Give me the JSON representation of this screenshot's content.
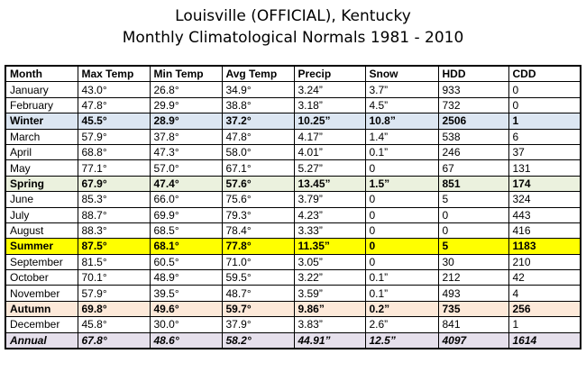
{
  "title": {
    "line1": "Louisville (OFFICIAL),  Kentucky",
    "line2": "Monthly Climatological Normals 1981 - 2010"
  },
  "table": {
    "headers": [
      "Month",
      "Max Temp",
      "Min Temp",
      "Avg Temp",
      "Precip",
      "Snow",
      "HDD",
      "CDD"
    ],
    "rows": [
      {
        "type": "month",
        "cells": [
          "January",
          "43.0°",
          "26.8°",
          "34.9°",
          "3.24”",
          "3.7”",
          "933",
          "0"
        ]
      },
      {
        "type": "month",
        "cells": [
          "February",
          "47.8°",
          "29.9°",
          "38.8°",
          "3.18”",
          "4.5”",
          "732",
          "0"
        ]
      },
      {
        "type": "winter",
        "cells": [
          "Winter",
          "45.5°",
          "28.9°",
          "37.2°",
          "10.25”",
          "10.8”",
          "2506",
          "1"
        ]
      },
      {
        "type": "month",
        "cells": [
          "March",
          "57.9°",
          "37.8°",
          "47.8°",
          "4.17”",
          "1.4”",
          "538",
          "6"
        ]
      },
      {
        "type": "month",
        "cells": [
          "April",
          "68.8°",
          "47.3°",
          "58.0°",
          "4.01”",
          "0.1”",
          "246",
          "37"
        ]
      },
      {
        "type": "month",
        "cells": [
          "May",
          "77.1°",
          "57.0°",
          "67.1°",
          "5.27”",
          "0",
          "67",
          "131"
        ]
      },
      {
        "type": "spring",
        "cells": [
          "Spring",
          "67.9°",
          "47.4°",
          "57.6°",
          "13.45”",
          "1.5”",
          "851",
          "174"
        ]
      },
      {
        "type": "month",
        "cells": [
          "June",
          "85.3°",
          "66.0°",
          "75.6°",
          "3.79”",
          "0",
          "5",
          "324"
        ]
      },
      {
        "type": "month",
        "cells": [
          "July",
          "88.7°",
          "69.9°",
          "79.3°",
          "4.23”",
          "0",
          "0",
          "443"
        ]
      },
      {
        "type": "month",
        "cells": [
          "August",
          "88.3°",
          "68.5°",
          "78.4°",
          "3.33”",
          "0",
          "0",
          "416"
        ]
      },
      {
        "type": "summer",
        "cells": [
          "Summer",
          "87.5°",
          "68.1°",
          "77.8°",
          "11.35”",
          "0",
          "5",
          "1183"
        ]
      },
      {
        "type": "month",
        "cells": [
          "September",
          "81.5°",
          "60.5°",
          "71.0°",
          "3.05”",
          "0",
          "30",
          "210"
        ]
      },
      {
        "type": "month",
        "cells": [
          "October",
          "70.1°",
          "48.9°",
          "59.5°",
          "3.22”",
          "0.1”",
          "212",
          "42"
        ]
      },
      {
        "type": "month",
        "cells": [
          "November",
          "57.9°",
          "39.5°",
          "48.7°",
          "3.59”",
          "0.1”",
          "493",
          "4"
        ]
      },
      {
        "type": "autumn",
        "cells": [
          "Autumn",
          "69.8°",
          "49.6°",
          "59.7°",
          "9.86”",
          "0.2”",
          "735",
          "256"
        ]
      },
      {
        "type": "month",
        "cells": [
          "December",
          "45.8°",
          "30.0°",
          "37.9°",
          "3.83”",
          "2.6”",
          "841",
          "1"
        ]
      },
      {
        "type": "annual",
        "cells": [
          "Annual",
          "67.8°",
          "48.6°",
          "58.2°",
          "44.91”",
          "12.5”",
          "4097",
          "1614"
        ]
      }
    ]
  },
  "colors": {
    "winter": "#dce6f2",
    "spring": "#ebf1de",
    "summer": "#ffff00",
    "autumn": "#fde9d9",
    "annual": "#e6e0ec"
  }
}
